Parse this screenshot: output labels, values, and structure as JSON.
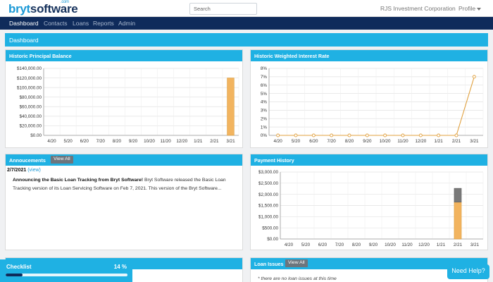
{
  "brand": {
    "logo_part1": "bryt",
    "logo_part2": "software",
    "logo_suffix": ".com"
  },
  "search": {
    "placeholder": "Search",
    "value": ""
  },
  "header": {
    "company": "RJS Investment Corporation",
    "profile": "Profile"
  },
  "nav": [
    {
      "label": "Dashboard",
      "active": true
    },
    {
      "label": "Contacts",
      "active": false
    },
    {
      "label": "Loans",
      "active": false
    },
    {
      "label": "Reports",
      "active": false
    },
    {
      "label": "Admin",
      "active": false
    }
  ],
  "page_title": "Dashboard",
  "cards": {
    "principal": {
      "title": "Historic Principal Balance"
    },
    "interest": {
      "title": "Historic Weighted Interest Rate"
    },
    "announcements": {
      "title": "Annoucements",
      "view_all": "View All"
    },
    "payment": {
      "title": "Payment History"
    },
    "loan_issues": {
      "title": "Loan Issues",
      "view_all": "View All",
      "empty_text": "* there are no loan issues at this time"
    }
  },
  "announcement": {
    "date": "2/7/2021",
    "view_label": "(view)",
    "headline": "Announcing the Basic Loan Tracking from Bryt Software!",
    "body": "Bryt Software released the Basic Loan Tracking version of its Loan Servicing Software on Feb 7, 2021.  This version of the Bryt Software..."
  },
  "checklist": {
    "title": "Checklist",
    "percent_label": "14 %",
    "progress": 0.14
  },
  "help": {
    "label": "Need Help?"
  },
  "colors": {
    "accent": "#1fb1e3",
    "navy": "#0f2b5b",
    "bar": "#f2b45f",
    "bar_stroke": "#d89a38",
    "gray_bar": "#7a7a7a"
  },
  "chart_data": [
    {
      "type": "bar",
      "name": "principal",
      "categories": [
        "4/20",
        "5/20",
        "6/20",
        "7/20",
        "8/20",
        "9/20",
        "10/20",
        "11/20",
        "12/20",
        "1/21",
        "2/21",
        "3/21"
      ],
      "values": [
        0,
        0,
        0,
        0,
        0,
        0,
        0,
        0,
        0,
        0,
        0,
        120000
      ],
      "yticks": [
        "$0.00",
        "$20,000.00",
        "$40,000.00",
        "$60,000.00",
        "$80,000.00",
        "$100,000.00",
        "$120,000.00",
        "$140,000.00"
      ],
      "ylim": [
        0,
        140000
      ],
      "title": "",
      "xlabel": "",
      "ylabel": ""
    },
    {
      "type": "line",
      "name": "interest",
      "categories": [
        "4/20",
        "5/20",
        "6/20",
        "7/20",
        "8/20",
        "9/20",
        "10/20",
        "11/20",
        "12/20",
        "1/21",
        "2/21",
        "3/21"
      ],
      "values": [
        0,
        0,
        0,
        0,
        0,
        0,
        0,
        0,
        0,
        0,
        0,
        7
      ],
      "yticks": [
        "0%",
        "1%",
        "2%",
        "3%",
        "4%",
        "5%",
        "6%",
        "7%",
        "8%"
      ],
      "ylim": [
        0,
        8
      ],
      "title": "",
      "xlabel": "",
      "ylabel": ""
    },
    {
      "type": "bar",
      "name": "payment",
      "categories": [
        "4/20",
        "5/20",
        "6/20",
        "7/20",
        "8/20",
        "9/20",
        "10/20",
        "11/20",
        "12/20",
        "1/21",
        "2/21",
        "3/21"
      ],
      "series": [
        {
          "values": [
            0,
            0,
            0,
            0,
            0,
            0,
            0,
            0,
            0,
            0,
            1650,
            0
          ]
        },
        {
          "values": [
            0,
            0,
            0,
            0,
            0,
            0,
            0,
            0,
            0,
            0,
            620,
            0
          ]
        }
      ],
      "yticks": [
        "$0.00",
        "$500.00",
        "$1,000.00",
        "$1,500.00",
        "$2,000.00",
        "$2,500.00",
        "$3,000.00"
      ],
      "ylim": [
        0,
        3000
      ],
      "stacked": true,
      "title": "",
      "xlabel": "",
      "ylabel": ""
    }
  ]
}
